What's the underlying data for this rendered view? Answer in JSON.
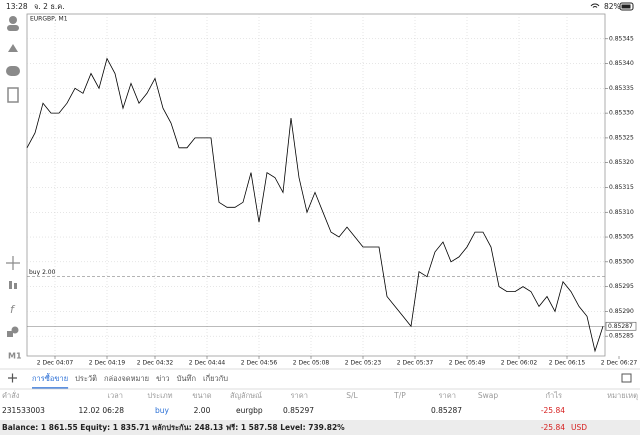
{
  "status_bar": {
    "time": "13:28",
    "date": "จ. 2 ธ.ค.",
    "battery": "82%"
  },
  "chart_data": {
    "type": "line",
    "title": "EURGBP, M1",
    "color": "#000000",
    "grid": true,
    "values": [
      0.85323,
      0.85326,
      0.85332,
      0.8533,
      0.8533,
      0.85332,
      0.85335,
      0.85334,
      0.85338,
      0.85335,
      0.85341,
      0.85338,
      0.85331,
      0.85336,
      0.85332,
      0.85334,
      0.85337,
      0.85331,
      0.85328,
      0.85323,
      0.85323,
      0.85325,
      0.85325,
      0.85325,
      0.85312,
      0.85311,
      0.85311,
      0.85312,
      0.85318,
      0.85308,
      0.85318,
      0.85317,
      0.85314,
      0.85329,
      0.85317,
      0.8531,
      0.85314,
      0.8531,
      0.85306,
      0.85305,
      0.85307,
      0.85305,
      0.85303,
      0.85303,
      0.85303,
      0.85293,
      0.85291,
      0.85289,
      0.85287,
      0.85298,
      0.85297,
      0.85302,
      0.85304,
      0.853,
      0.85301,
      0.85303,
      0.85306,
      0.85306,
      0.85303,
      0.85295,
      0.85294,
      0.85294,
      0.85295,
      0.85294,
      0.85291,
      0.85293,
      0.8529,
      0.85296,
      0.85294,
      0.85291,
      0.85289,
      0.85282,
      0.85287
    ],
    "xlim": [
      0,
      74
    ],
    "xticks": [
      {
        "value": 3.5,
        "label": "2 Dec 04:07"
      },
      {
        "value": 10,
        "label": "2 Dec 04:19"
      },
      {
        "value": 16,
        "label": "2 Dec 04:32"
      },
      {
        "value": 22.5,
        "label": "2 Dec 04:44"
      },
      {
        "value": 29,
        "label": "2 Dec 04:56"
      },
      {
        "value": 35.5,
        "label": "2 Dec 05:08"
      },
      {
        "value": 42,
        "label": "2 Dec 05:23"
      },
      {
        "value": 48.5,
        "label": "2 Dec 05:37"
      },
      {
        "value": 55,
        "label": "2 Dec 05:49"
      },
      {
        "value": 61.5,
        "label": "2 Dec 06:02"
      },
      {
        "value": 67.5,
        "label": "2 Dec 06:15"
      },
      {
        "value": 74,
        "label": "2 Dec 06:27"
      }
    ],
    "ylim": [
      0.85281,
      0.8535
    ],
    "yticks": [
      0.85285,
      {
        "value": 0.8529,
        "label": "0.85290"
      },
      0.85295,
      {
        "value": 0.853,
        "label": "0.85300"
      },
      0.85305,
      {
        "value": 0.8531,
        "label": "0.85310"
      },
      0.85315,
      {
        "value": 0.8532,
        "label": "0.85320"
      },
      0.85325,
      {
        "value": 0.8533,
        "label": "0.85330"
      },
      0.85335,
      {
        "value": 0.8534,
        "label": "0.85340"
      },
      0.85345
    ],
    "order_line": {
      "label": "buy 2.00",
      "value": 0.85297
    },
    "price_line": {
      "value": 0.85287
    }
  },
  "sidebar": {
    "timeframe": "M1"
  },
  "tabs": [
    "การซื้อขาย",
    "ประวัติ",
    "กล่องจดหมาย",
    "ข่าว",
    "บันทึก",
    "เกี่ยวกับ"
  ],
  "table": {
    "header": [
      "คำสั่ง",
      "เวลา",
      "ประเภท",
      "ขนาด",
      "สัญลักษณ์",
      "ราคา",
      "S/L",
      "T/P",
      "ราคา",
      "Swap",
      "กำไร",
      "หมายเหตุ"
    ],
    "row": {
      "order": "231533003",
      "time": "12.02 06:28",
      "type": "buy",
      "volume": "2.00",
      "symbol": "eurgbp",
      "open_price": "0.85297",
      "price": "0.85287",
      "profit": "-25.84"
    }
  },
  "footer": {
    "summary": "Balance: 1 861.55 Equity: 1 835.71 หลักประกัน: 248.13 ฟรี: 1 587.58 Level: 739.82%",
    "profit": "-25.84",
    "currency": "USD"
  }
}
